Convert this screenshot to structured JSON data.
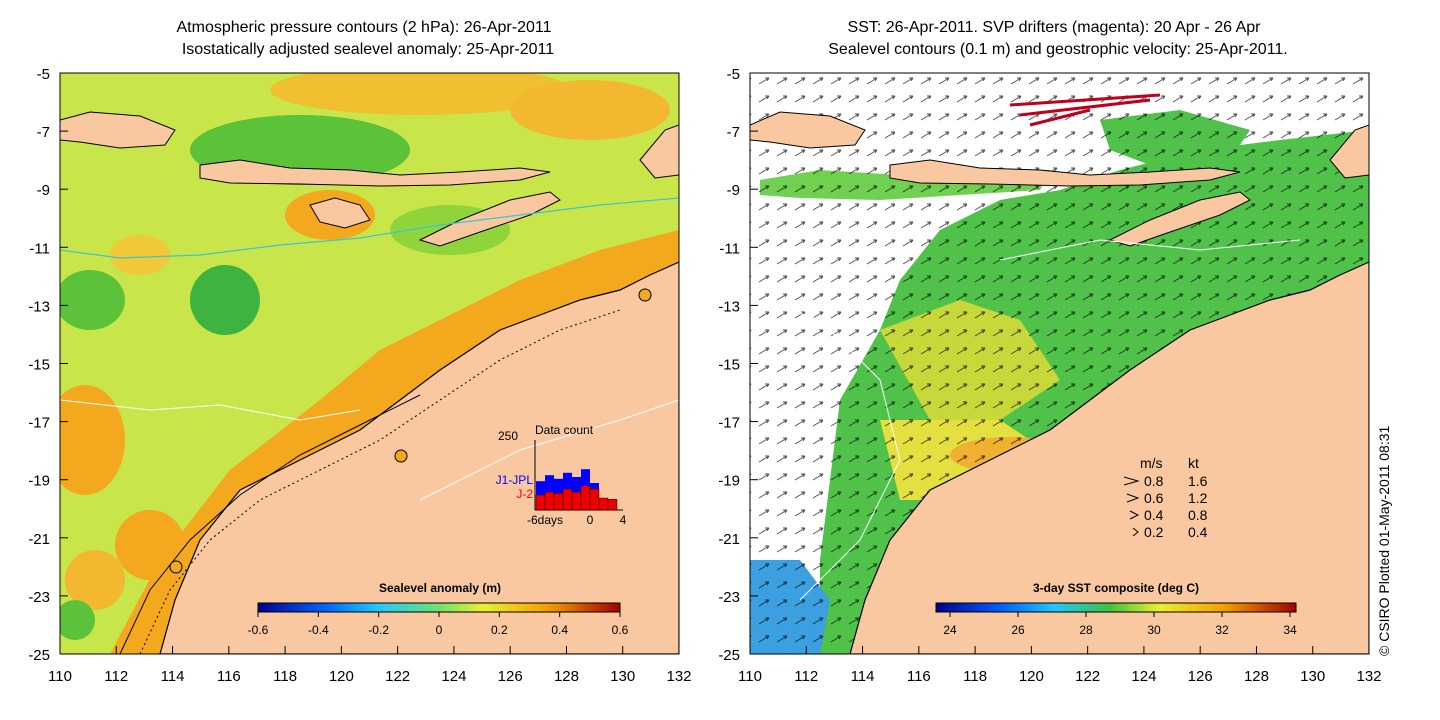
{
  "left_panel": {
    "title_line1": "Atmospheric pressure contours (2 hPa): 26-Apr-2011",
    "title_line2": "Isostatically adjusted sealevel anomaly: 25-Apr-2011",
    "colorbar_title": "Sealevel anomaly (m)",
    "colorbar_ticks": [
      "-0.6",
      "-0.4",
      "-0.2",
      "0",
      "0.2",
      "0.4",
      "0.6"
    ],
    "inset": {
      "title": "Data count",
      "max_label": "250",
      "series_a": "J1-JPL",
      "series_b": "J-2",
      "x_left": "-6days",
      "x_mid": "0",
      "x_right": "4",
      "series_a_counts": [
        0.48,
        0.58,
        0.52,
        0.62,
        0.55,
        0.68,
        0.45,
        0,
        0
      ],
      "series_b_counts": [
        0.25,
        0.3,
        0.28,
        0.35,
        0.3,
        0.4,
        0.35,
        0.2,
        0.18
      ]
    }
  },
  "right_panel": {
    "title_line1": "SST: 26-Apr-2011. SVP drifters (magenta): 20 Apr - 26 Apr",
    "title_line2": "Sealevel contours (0.1 m) and geostrophic velocity: 25-Apr-2011.",
    "colorbar_title": "3-day SST composite (deg C)",
    "colorbar_ticks": [
      "24",
      "26",
      "28",
      "30",
      "32",
      "34"
    ],
    "speed_legend": {
      "header_ms": "m/s",
      "header_kt": "kt",
      "rows": [
        {
          "ms": "0.8",
          "kt": "1.6"
        },
        {
          "ms": "0.6",
          "kt": "1.2"
        },
        {
          "ms": "0.4",
          "kt": "0.8"
        },
        {
          "ms": "0.2",
          "kt": "0.4"
        }
      ]
    }
  },
  "axes": {
    "x_ticks": [
      "110",
      "112",
      "114",
      "116",
      "118",
      "120",
      "122",
      "124",
      "126",
      "128",
      "130",
      "132"
    ],
    "y_ticks": [
      "-5",
      "-7",
      "-9",
      "-11",
      "-13",
      "-15",
      "-17",
      "-19",
      "-21",
      "-23",
      "-25"
    ]
  },
  "side_caption": "© CSIRO Plotted 01-May-2011 08:31",
  "colors": {
    "land": "#f9c8a0",
    "sla_base": "#c8e64a",
    "sla_orange": "#f3a81e",
    "sla_green": "#3fb33f",
    "sst_green": "#50c24a"
  }
}
